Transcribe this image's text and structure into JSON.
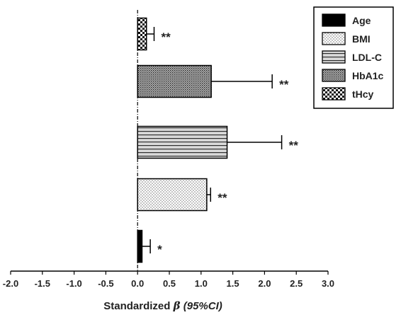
{
  "chart_data": {
    "type": "bar",
    "orientation": "horizontal",
    "categories": [
      "Age",
      "BMI",
      "LDL-C",
      "HbA1c",
      "tHcy"
    ],
    "values": [
      0.07,
      1.09,
      1.41,
      1.16,
      0.14
    ],
    "ci_upper": [
      0.2,
      1.15,
      2.27,
      2.12,
      0.26
    ],
    "significance": [
      "*",
      "**",
      "**",
      "**",
      "**"
    ],
    "fill_patterns": [
      "solid",
      "dots",
      "hlines",
      "crosshatch",
      "checker"
    ],
    "xlabel": {
      "prefix": "Standardized ",
      "symbol": "β",
      "suffix": " (95%CI)"
    },
    "xlim": [
      -2.0,
      3.0
    ],
    "xticks": [
      "-2.0",
      "-1.5",
      "-1.0",
      "-0.5",
      "0.0",
      "0.5",
      "1.0",
      "1.5",
      "2.0",
      "2.5",
      "3.0"
    ],
    "legend": {
      "position": "top-right",
      "entries": [
        "Age",
        "BMI",
        "LDL-C",
        "HbA1c",
        "tHcy"
      ]
    },
    "reference_line": 0,
    "grid": false
  }
}
